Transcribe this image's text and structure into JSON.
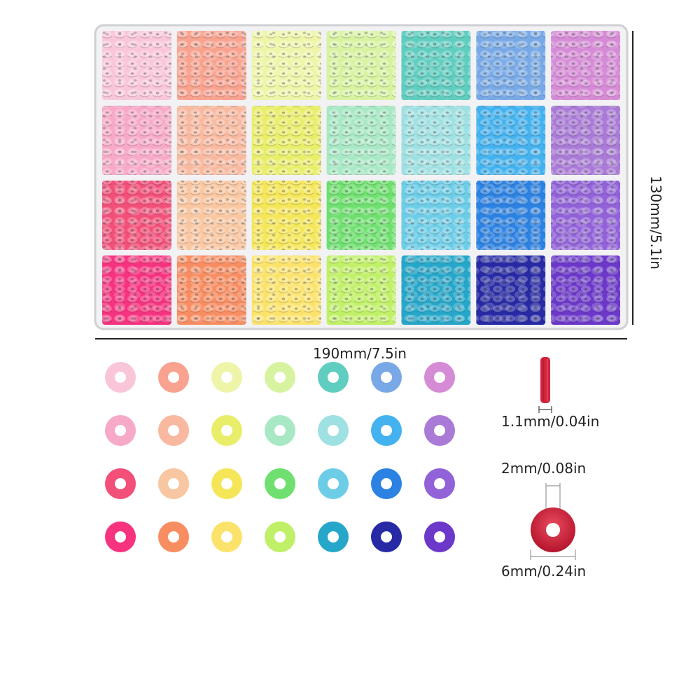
{
  "image": {
    "subject": "clay heishi bead kit in 28-compartment box",
    "palette_rows": [
      [
        "#f9c6d9",
        "#f8a28f",
        "#eef5a8",
        "#d7f3a0",
        "#5fcdbf",
        "#78a9e6",
        "#d68bd6"
      ],
      [
        "#f7a9c8",
        "#f8b9a0",
        "#e9ee6a",
        "#a8e8c4",
        "#9fe0e2",
        "#43b2ef",
        "#a97ad6"
      ],
      [
        "#f24f79",
        "#f8c6a0",
        "#f4e656",
        "#6fe06f",
        "#6dcde7",
        "#2b82e3",
        "#9162d8"
      ],
      [
        "#f6337f",
        "#f88d62",
        "#fbe36b",
        "#c0f067",
        "#26a7c9",
        "#272aa4",
        "#6b38c9"
      ]
    ],
    "bead_color": "#d3233d"
  },
  "dimensions": {
    "width": "190mm/7.5in",
    "height": "130mm/5.1in",
    "thickness": "1.1mm/0.04in",
    "hole": "2mm/0.08in",
    "diameter": "6mm/0.24in"
  }
}
